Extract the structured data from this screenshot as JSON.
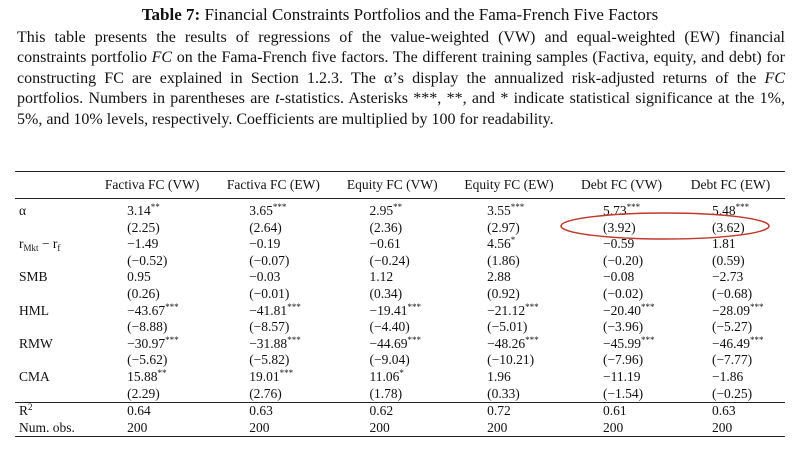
{
  "caption": {
    "label": "Table 7:",
    "title": "Financial Constraints Portfolios and the Fama-French Five Factors"
  },
  "description": [
    "This table presents the results of regressions of the value-weighted (VW) and equal-weighted (EW) financial constraints portfolio ",
    "FC",
    " on the Fama-French five factors.  The different training samples (Factiva, equity, and debt) for constructing FC are explained in Section 1.2.3.  The α’s display the annualized risk-adjusted returns of the ",
    "FC",
    " portfolios. Numbers in parentheses are ",
    "t",
    "-statistics. Asterisks ***, **, and * indicate statistical significance at the 1%, 5%, and 10% levels, respectively. Coefficients are multiplied by 100 for readability."
  ],
  "table": {
    "header": [
      "Factiva FC (VW)",
      "Factiva FC (EW)",
      "Equity FC (VW)",
      "Equity FC (EW)",
      "Debt FC (VW)",
      "Debt FC (EW)"
    ],
    "coef_rows": [
      {
        "label": [
          "α"
        ],
        "coef": [
          "3.14**",
          "3.65***",
          "2.95**",
          "3.55***",
          "5.73***",
          "5.48***"
        ],
        "tstat": [
          "(2.25)",
          "(2.64)",
          "(2.36)",
          "(2.97)",
          "(3.92)",
          "(3.62)"
        ]
      },
      {
        "label": [
          "r",
          "Mkt",
          " − r",
          "f"
        ],
        "coef": [
          "−1.49",
          "−0.19",
          "−0.61",
          "4.56*",
          "−0.59",
          "1.81"
        ],
        "tstat": [
          "(−0.52)",
          "(−0.07)",
          "(−0.24)",
          "(1.86)",
          "(−0.20)",
          "(0.59)"
        ]
      },
      {
        "label": [
          "SMB"
        ],
        "coef": [
          "0.95",
          "−0.03",
          "1.12",
          "2.88",
          "−0.08",
          "−2.73"
        ],
        "tstat": [
          "(0.26)",
          "(−0.01)",
          "(0.34)",
          "(0.92)",
          "(−0.02)",
          "(−0.68)"
        ]
      },
      {
        "label": [
          "HML"
        ],
        "coef": [
          "−43.67***",
          "−41.81***",
          "−19.41***",
          "−21.12***",
          "−20.40***",
          "−28.09***"
        ],
        "tstat": [
          "(−8.88)",
          "(−8.57)",
          "(−4.40)",
          "(−5.01)",
          "(−3.96)",
          "(−5.27)"
        ]
      },
      {
        "label": [
          "RMW"
        ],
        "coef": [
          "−30.97***",
          "−31.88***",
          "−44.69***",
          "−48.26***",
          "−45.99***",
          "−46.49***"
        ],
        "tstat": [
          "(−5.62)",
          "(−5.82)",
          "(−9.04)",
          "(−10.21)",
          "(−7.96)",
          "(−7.77)"
        ]
      },
      {
        "label": [
          "CMA"
        ],
        "coef": [
          "15.88**",
          "19.01***",
          "11.06*",
          "1.96",
          "−11.19",
          "−1.86"
        ],
        "tstat": [
          "(2.29)",
          "(2.76)",
          "(1.78)",
          "(0.33)",
          "(−1.54)",
          "(−0.25)"
        ]
      }
    ],
    "stat_rows": [
      {
        "label": [
          "R",
          "2"
        ],
        "cells": [
          "0.64",
          "0.63",
          "0.62",
          "0.72",
          "0.61",
          "0.63"
        ]
      },
      {
        "label": [
          "Num. obs."
        ],
        "cells": [
          "200",
          "200",
          "200",
          "200",
          "200",
          "200"
        ]
      }
    ]
  }
}
